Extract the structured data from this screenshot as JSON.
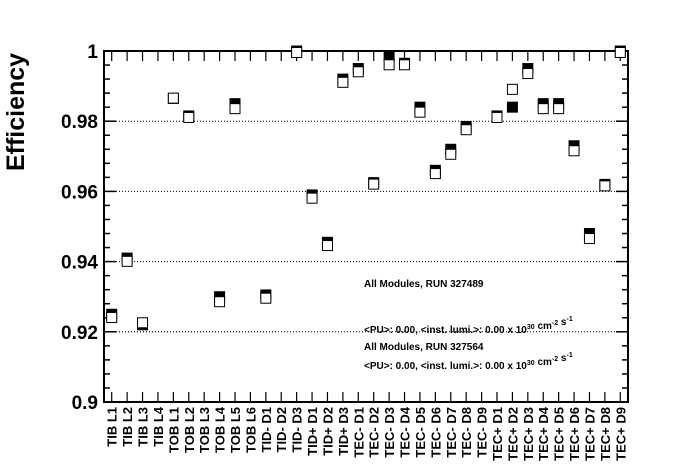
{
  "chart_data": {
    "type": "scatter",
    "ylabel": "Efficiency",
    "xlabel": "",
    "ylim": [
      0.9,
      1.0
    ],
    "yticks": [
      "0.9",
      "0.92",
      "0.94",
      "0.96",
      "0.98",
      "1"
    ],
    "grid": "horizontal-dotted",
    "categories": [
      "TIB L1",
      "TIB L2",
      "TIB L3",
      "TIB L4",
      "TOB L1",
      "TOB L2",
      "TOB L3",
      "TOB L4",
      "TOB L5",
      "TOB L6",
      "TID- D1",
      "TID- D2",
      "TID- D3",
      "TID+ D1",
      "TID+ D2",
      "TID+ D3",
      "TEC- D1",
      "TEC- D2",
      "TEC- D3",
      "TEC- D4",
      "TEC- D5",
      "TEC- D6",
      "TEC- D7",
      "TEC- D8",
      "TEC- D9",
      "TEC+ D1",
      "TEC+ D2",
      "TEC+ D3",
      "TEC+ D4",
      "TEC+ D5",
      "TEC+ D6",
      "TEC+ D7",
      "TEC+ D8",
      "TEC+ D9"
    ],
    "series": [
      {
        "name": "All Modules, RUN 327489",
        "marker": "filled-square",
        "color": "#000000",
        "values": [
          0.925,
          0.941,
          0.922,
          null,
          0.9865,
          0.9815,
          null,
          0.93,
          0.985,
          null,
          0.9305,
          null,
          1.0,
          0.959,
          0.9455,
          0.992,
          0.995,
          0.9625,
          0.9985,
          0.9965,
          0.984,
          0.966,
          0.972,
          0.9785,
          null,
          0.9815,
          0.984,
          0.995,
          0.985,
          0.985,
          0.973,
          0.948,
          0.962,
          1.0
        ]
      },
      {
        "name": "All Modules, RUN 327564",
        "marker": "open-square",
        "color": "#000000",
        "values": [
          0.9245,
          0.9405,
          0.923,
          null,
          0.987,
          0.9815,
          null,
          0.929,
          0.984,
          null,
          0.93,
          null,
          1.0,
          0.9585,
          0.945,
          0.9915,
          0.9945,
          0.9625,
          0.9965,
          0.9965,
          0.983,
          0.9655,
          0.971,
          0.978,
          null,
          0.9815,
          0.9895,
          0.994,
          0.984,
          0.984,
          0.972,
          0.947,
          0.962,
          1.0
        ]
      }
    ],
    "legend": {
      "placement": "bottom-right",
      "entries": [
        {
          "run": "All Modules, RUN 327489",
          "lumi_prefix": "<PU>: 0.00, <inst. lumi.>: 0.00 x 10",
          "lumi_exp": "30",
          "lumi_unit": " cm",
          "lumi_unit_exp": "-2",
          "lumi_s": " s",
          "lumi_s_exp": "-1"
        },
        {
          "run": "All Modules, RUN 327564",
          "lumi_prefix": "<PU>: 0.00, <inst. lumi.>: 0.00 x 10",
          "lumi_exp": "30",
          "lumi_unit": " cm",
          "lumi_unit_exp": "-2",
          "lumi_s": " s",
          "lumi_s_exp": "-1"
        }
      ]
    }
  }
}
